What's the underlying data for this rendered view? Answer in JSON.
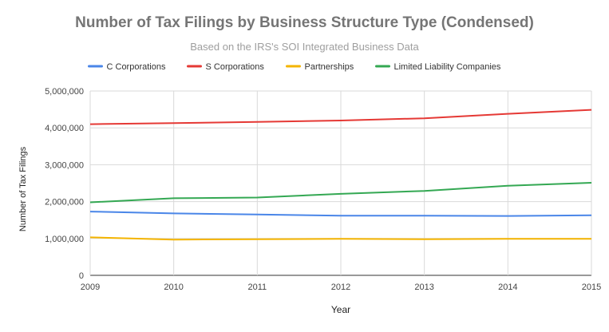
{
  "chart_data": {
    "type": "line",
    "title": "Number of Tax Filings by Business Structure Type (Condensed)",
    "subtitle": "Based on the IRS's SOI Integrated Business Data",
    "xlabel": "Year",
    "ylabel": "Number of Tax Filings",
    "x": [
      2009,
      2010,
      2011,
      2012,
      2013,
      2014,
      2015
    ],
    "ylim": [
      0,
      5000000
    ],
    "yticks": [
      0,
      1000000,
      2000000,
      3000000,
      4000000,
      5000000
    ],
    "ytick_labels": [
      "0",
      "1,000,000",
      "2,000,000",
      "3,000,000",
      "4,000,000",
      "5,000,000"
    ],
    "grid": true,
    "legend_position": "top",
    "series": [
      {
        "name": "C Corporations",
        "color": "#4a86e8",
        "values": [
          1730000,
          1680000,
          1650000,
          1620000,
          1620000,
          1610000,
          1630000
        ]
      },
      {
        "name": "S Corporations",
        "color": "#e53935",
        "values": [
          4100000,
          4130000,
          4160000,
          4200000,
          4260000,
          4380000,
          4490000
        ]
      },
      {
        "name": "Partnerships",
        "color": "#f4b400",
        "values": [
          1030000,
          970000,
          980000,
          990000,
          980000,
          990000,
          990000
        ]
      },
      {
        "name": "Limited Liability Companies",
        "color": "#34a853",
        "values": [
          1980000,
          2090000,
          2110000,
          2210000,
          2290000,
          2430000,
          2510000
        ]
      }
    ]
  }
}
